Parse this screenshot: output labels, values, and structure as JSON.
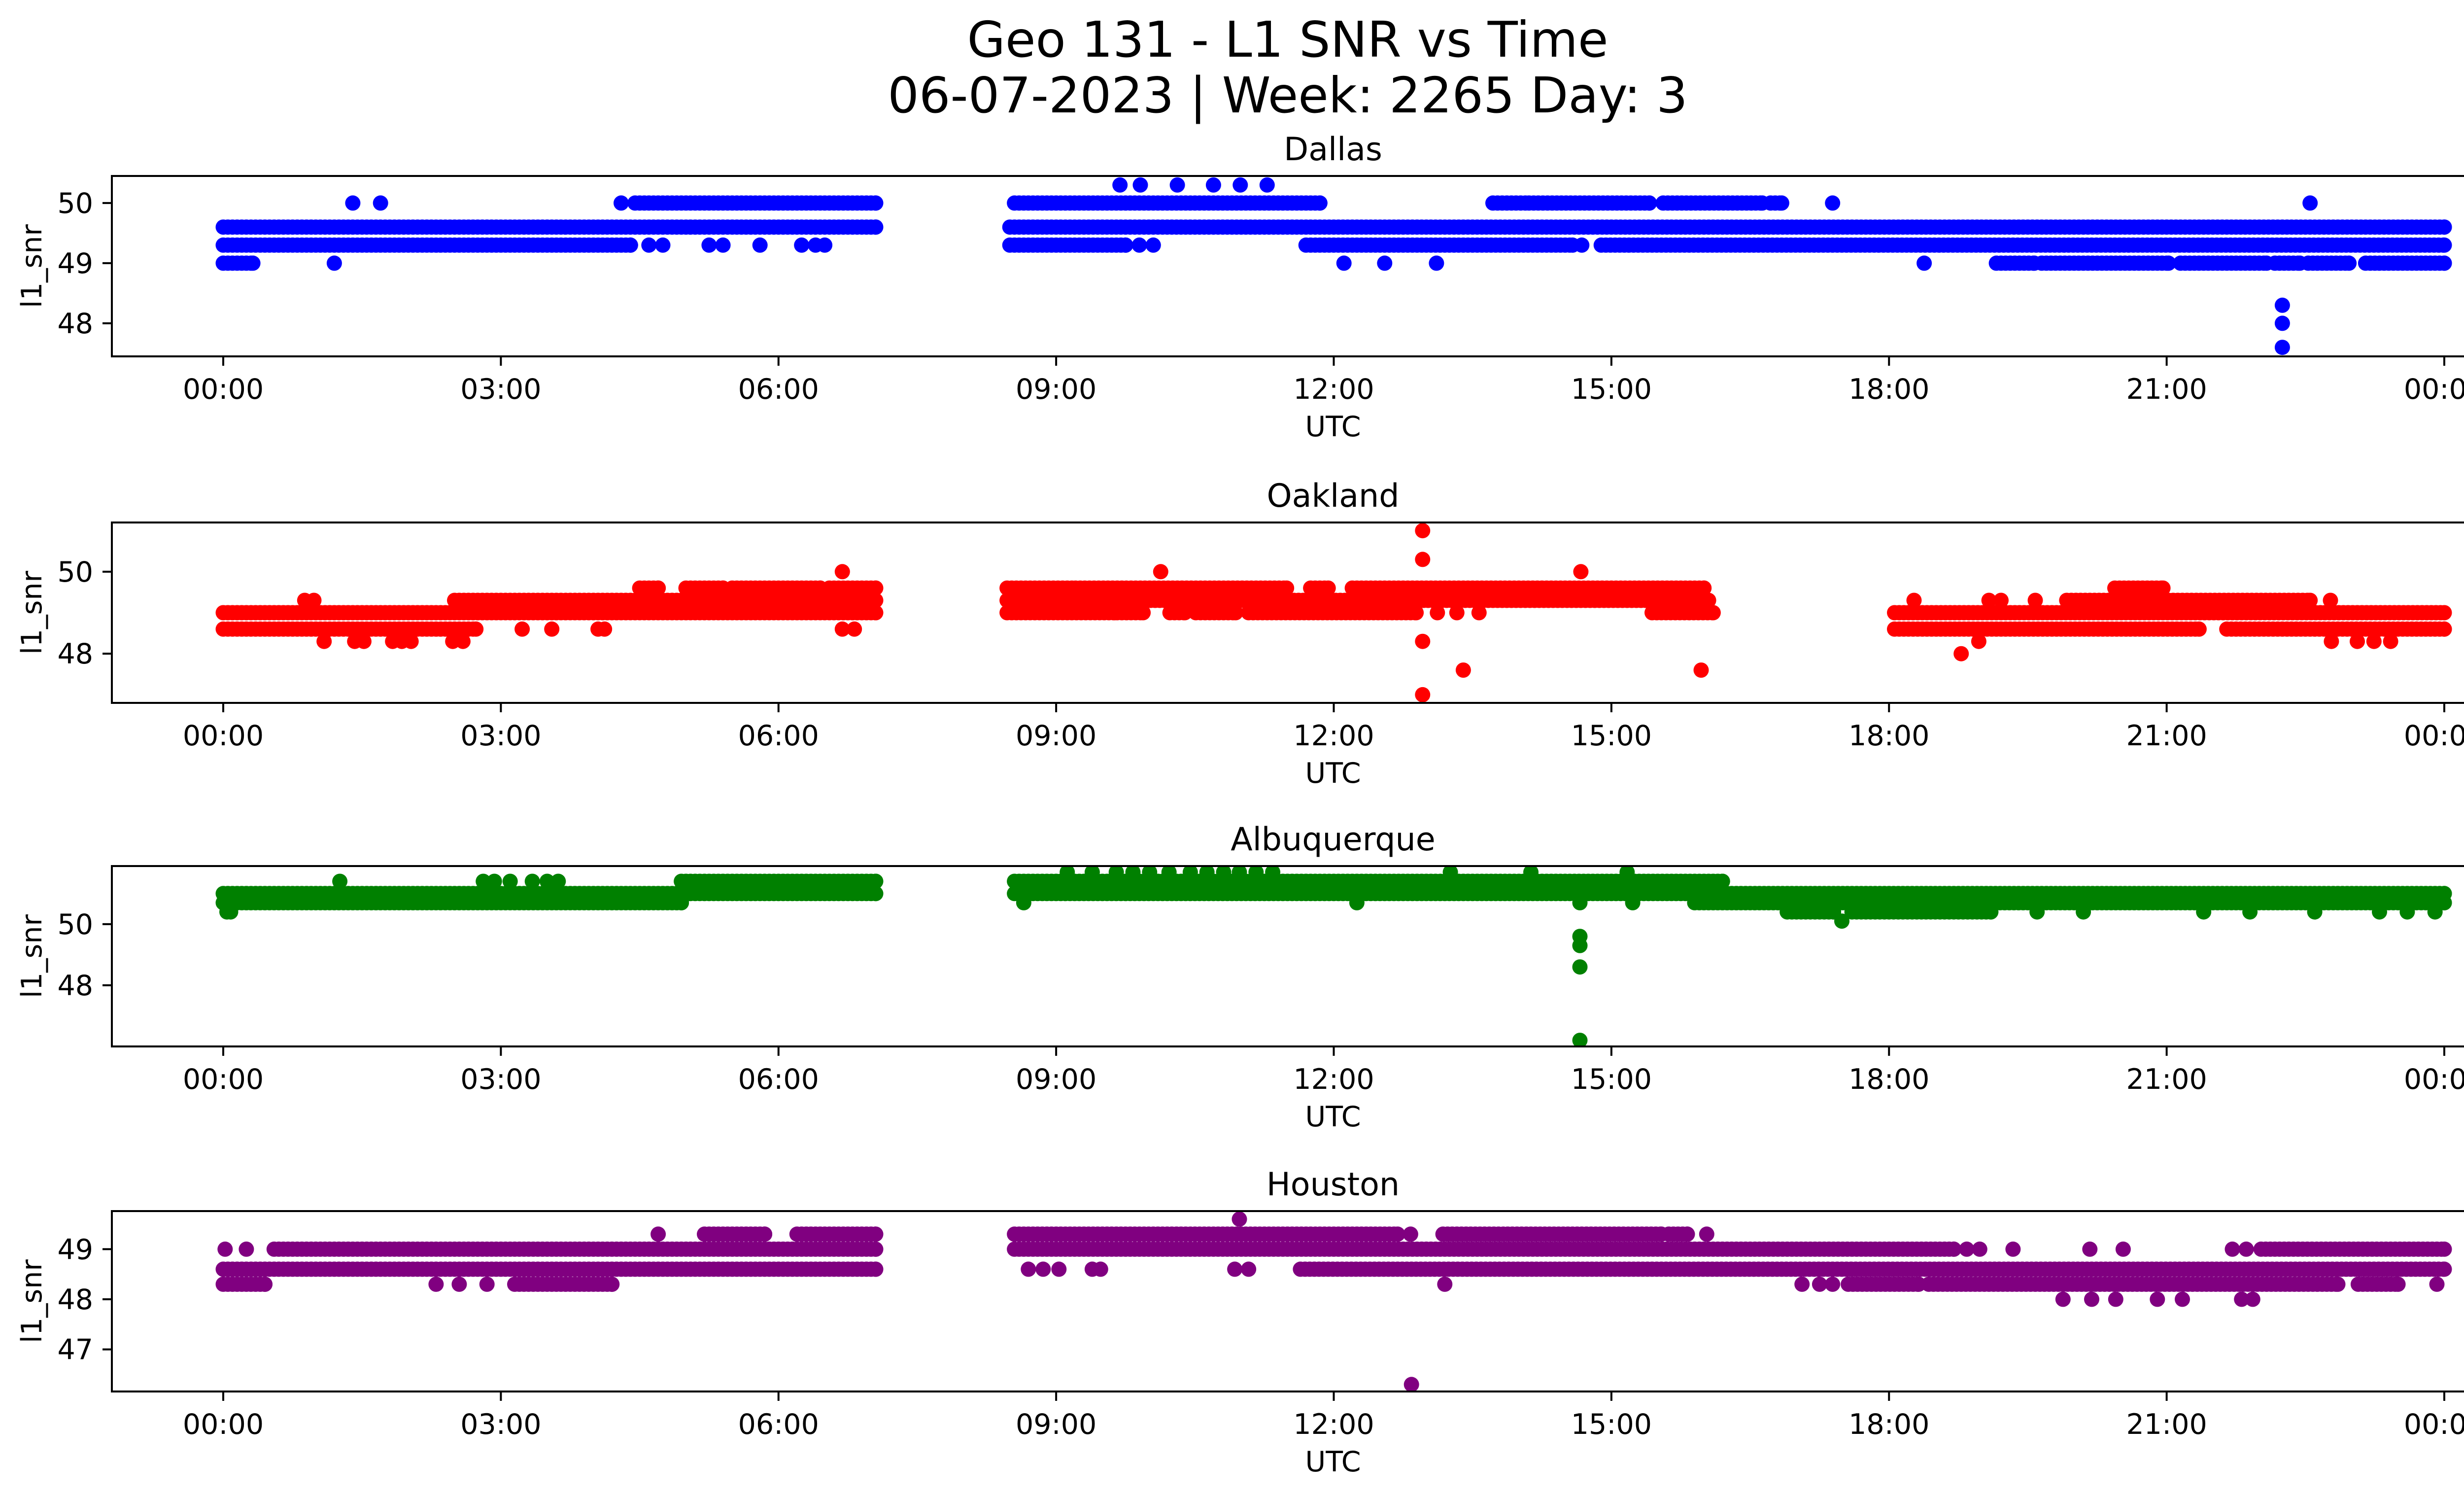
{
  "figure": {
    "title_line1": "Geo 131 - L1 SNR vs Time",
    "title_line2": "06-07-2023 | Week: 2265 Day: 3"
  },
  "chart_data": [
    {
      "type": "scatter",
      "title": "Dallas",
      "xlabel": "UTC",
      "ylabel": "l1_snr",
      "color": "#0000ff",
      "xlim_hours": [
        -1.2,
        25.2
      ],
      "xticks_hours": [
        0,
        3,
        6,
        9,
        12,
        15,
        18,
        21,
        24
      ],
      "xtick_labels": [
        "00:00",
        "03:00",
        "06:00",
        "09:00",
        "12:00",
        "15:00",
        "18:00",
        "21:00",
        "00:00"
      ],
      "ylim": [
        47.45,
        50.45
      ],
      "yticks": [
        48,
        49,
        50
      ],
      "ytick_labels": [
        "48",
        "49",
        "50"
      ],
      "grid": false,
      "runs": [
        [
          0.0,
          7.05,
          49.6
        ],
        [
          0.0,
          4.4,
          49.3
        ],
        [
          4.45,
          7.05,
          50.0
        ],
        [
          0.0,
          0.32,
          49.0
        ],
        [
          8.55,
          11.85,
          50.0
        ],
        [
          8.5,
          24.0,
          49.6
        ],
        [
          8.5,
          9.75,
          49.3
        ],
        [
          11.7,
          14.58,
          49.3
        ],
        [
          14.89,
          24.0,
          49.3
        ],
        [
          13.72,
          14.11,
          50.0
        ],
        [
          14.16,
          15.41,
          50.0
        ],
        [
          15.56,
          16.63,
          50.0
        ],
        [
          16.72,
          16.84,
          50.0
        ],
        [
          19.16,
          19.57,
          49.0
        ],
        [
          19.65,
          21.02,
          49.0
        ],
        [
          21.15,
          22.08,
          49.0
        ],
        [
          22.17,
          22.44,
          49.0
        ],
        [
          22.53,
          22.97,
          49.0
        ],
        [
          23.15,
          24.0,
          49.0
        ]
      ],
      "points": [
        [
          1.2,
          49.0
        ],
        [
          1.4,
          50.0
        ],
        [
          1.7,
          50.0
        ],
        [
          4.3,
          50.0
        ],
        [
          4.6,
          49.3
        ],
        [
          4.75,
          49.3
        ],
        [
          5.25,
          49.3
        ],
        [
          5.4,
          49.3
        ],
        [
          5.8,
          49.3
        ],
        [
          6.25,
          49.3
        ],
        [
          6.4,
          49.3
        ],
        [
          6.5,
          49.3
        ],
        [
          9.69,
          50.3
        ],
        [
          9.91,
          50.3
        ],
        [
          10.31,
          50.3
        ],
        [
          10.7,
          50.3
        ],
        [
          10.99,
          50.3
        ],
        [
          11.28,
          50.3
        ],
        [
          9.9,
          49.3
        ],
        [
          10.05,
          49.3
        ],
        [
          14.68,
          49.3
        ],
        [
          12.11,
          49.0
        ],
        [
          12.55,
          49.0
        ],
        [
          13.11,
          49.0
        ],
        [
          18.38,
          49.0
        ],
        [
          17.39,
          50.0
        ],
        [
          22.55,
          50.0
        ],
        [
          22.25,
          48.3
        ],
        [
          22.25,
          48.0
        ],
        [
          22.25,
          47.6
        ]
      ]
    },
    {
      "type": "scatter",
      "title": "Oakland",
      "xlabel": "UTC",
      "ylabel": "l1_snr",
      "color": "#ff0000",
      "xlim_hours": [
        -1.2,
        25.2
      ],
      "xticks_hours": [
        0,
        3,
        6,
        9,
        12,
        15,
        18,
        21,
        24
      ],
      "xtick_labels": [
        "00:00",
        "03:00",
        "06:00",
        "09:00",
        "12:00",
        "15:00",
        "18:00",
        "21:00",
        "00:00"
      ],
      "ylim": [
        46.8,
        51.2
      ],
      "yticks": [
        48,
        50
      ],
      "ytick_labels": [
        "48",
        "50"
      ],
      "grid": false,
      "runs": [
        [
          0.0,
          7.05,
          49.0
        ],
        [
          0.0,
          2.73,
          48.6
        ],
        [
          2.5,
          7.05,
          49.3
        ],
        [
          4.5,
          4.7,
          49.6
        ],
        [
          5.0,
          5.4,
          49.6
        ],
        [
          5.5,
          6.45,
          49.6
        ],
        [
          6.55,
          7.05,
          49.6
        ],
        [
          8.47,
          16.05,
          49.3
        ],
        [
          8.47,
          9.21,
          49.6
        ],
        [
          9.26,
          11.49,
          49.6
        ],
        [
          11.75,
          11.94,
          49.6
        ],
        [
          12.2,
          16.0,
          49.6
        ],
        [
          8.47,
          9.63,
          49.0
        ],
        [
          9.66,
          9.94,
          49.0
        ],
        [
          10.23,
          10.39,
          49.0
        ],
        [
          10.51,
          10.94,
          49.0
        ],
        [
          11.08,
          12.89,
          49.0
        ],
        [
          15.44,
          16.1,
          49.0
        ],
        [
          18.06,
          24.0,
          49.0
        ],
        [
          18.06,
          21.35,
          48.6
        ],
        [
          21.65,
          24.0,
          48.6
        ],
        [
          19.92,
          22.55,
          49.3
        ],
        [
          20.44,
          20.96,
          49.6
        ]
      ],
      "points": [
        [
          0.88,
          49.3
        ],
        [
          0.98,
          49.3
        ],
        [
          1.09,
          48.3
        ],
        [
          1.42,
          48.3
        ],
        [
          1.52,
          48.3
        ],
        [
          1.83,
          48.3
        ],
        [
          1.93,
          48.3
        ],
        [
          2.03,
          48.3
        ],
        [
          2.48,
          48.3
        ],
        [
          2.59,
          48.3
        ],
        [
          3.23,
          48.6
        ],
        [
          3.55,
          48.6
        ],
        [
          4.05,
          48.6
        ],
        [
          4.12,
          48.6
        ],
        [
          6.69,
          48.6
        ],
        [
          6.82,
          48.6
        ],
        [
          6.69,
          50.0
        ],
        [
          10.13,
          50.0
        ],
        [
          14.67,
          50.0
        ],
        [
          12.96,
          51.0
        ],
        [
          12.96,
          50.3
        ],
        [
          12.96,
          48.3
        ],
        [
          12.96,
          47.0
        ],
        [
          13.12,
          49.0
        ],
        [
          13.33,
          49.0
        ],
        [
          13.57,
          49.0
        ],
        [
          13.4,
          47.6
        ],
        [
          15.97,
          47.6
        ],
        [
          18.27,
          49.3
        ],
        [
          19.08,
          49.3
        ],
        [
          19.21,
          49.3
        ],
        [
          19.58,
          49.3
        ],
        [
          22.77,
          49.3
        ],
        [
          18.97,
          48.3
        ],
        [
          22.78,
          48.3
        ],
        [
          23.06,
          48.3
        ],
        [
          23.24,
          48.3
        ],
        [
          23.42,
          48.3
        ],
        [
          18.78,
          48.0
        ]
      ]
    },
    {
      "type": "scatter",
      "title": "Albuquerque",
      "xlabel": "UTC",
      "ylabel": "l1_snr",
      "color": "#008000",
      "xlim_hours": [
        -1.2,
        25.2
      ],
      "xticks_hours": [
        0,
        3,
        6,
        9,
        12,
        15,
        18,
        21,
        24
      ],
      "xtick_labels": [
        "00:00",
        "03:00",
        "06:00",
        "09:00",
        "12:00",
        "15:00",
        "18:00",
        "21:00",
        "00:00"
      ],
      "ylim": [
        46.0,
        51.9
      ],
      "yticks": [
        48,
        50
      ],
      "ytick_labels": [
        "48",
        "50"
      ],
      "grid": false,
      "runs": [
        [
          0.0,
          4.95,
          50.7
        ],
        [
          0.0,
          7.05,
          51.0
        ],
        [
          4.95,
          7.05,
          51.4
        ],
        [
          8.55,
          16.2,
          51.0
        ],
        [
          8.55,
          16.2,
          51.4
        ],
        [
          15.9,
          24.0,
          50.7
        ],
        [
          15.9,
          24.0,
          51.0
        ],
        [
          16.9,
          17.4,
          50.4
        ],
        [
          17.6,
          19.1,
          50.4
        ]
      ],
      "points": [
        [
          0.04,
          50.4
        ],
        [
          0.08,
          50.4
        ],
        [
          1.26,
          51.4
        ],
        [
          2.81,
          51.4
        ],
        [
          2.93,
          51.4
        ],
        [
          3.1,
          51.4
        ],
        [
          3.34,
          51.4
        ],
        [
          3.5,
          51.4
        ],
        [
          3.62,
          51.4
        ],
        [
          9.12,
          51.7
        ],
        [
          9.39,
          51.7
        ],
        [
          9.65,
          51.7
        ],
        [
          9.83,
          51.7
        ],
        [
          10.01,
          51.7
        ],
        [
          10.22,
          51.7
        ],
        [
          10.45,
          51.7
        ],
        [
          10.63,
          51.7
        ],
        [
          10.81,
          51.7
        ],
        [
          10.98,
          51.7
        ],
        [
          11.16,
          51.7
        ],
        [
          11.34,
          51.7
        ],
        [
          13.26,
          51.7
        ],
        [
          14.13,
          51.7
        ],
        [
          15.17,
          51.7
        ],
        [
          8.65,
          50.7
        ],
        [
          12.25,
          50.7
        ],
        [
          15.23,
          50.7
        ],
        [
          14.66,
          50.7
        ],
        [
          14.66,
          49.6
        ],
        [
          14.66,
          49.3
        ],
        [
          14.66,
          48.6
        ],
        [
          14.66,
          46.2
        ],
        [
          17.49,
          50.1
        ],
        [
          19.6,
          50.4
        ],
        [
          20.1,
          50.4
        ],
        [
          21.4,
          50.4
        ],
        [
          21.9,
          50.4
        ],
        [
          22.6,
          50.4
        ],
        [
          23.3,
          50.4
        ],
        [
          23.6,
          50.4
        ],
        [
          23.9,
          50.4
        ]
      ]
    },
    {
      "type": "scatter",
      "title": "Houston",
      "xlabel": "UTC",
      "ylabel": "l1_snr",
      "color": "#800080",
      "xlim_hours": [
        -1.2,
        25.2
      ],
      "xticks_hours": [
        0,
        3,
        6,
        9,
        12,
        15,
        18,
        21,
        24
      ],
      "xtick_labels": [
        "00:00",
        "03:00",
        "06:00",
        "09:00",
        "12:00",
        "15:00",
        "18:00",
        "21:00",
        "00:00"
      ],
      "ylim": [
        46.16,
        49.76
      ],
      "yticks": [
        47,
        48,
        49
      ],
      "ytick_labels": [
        "47",
        "48",
        "49"
      ],
      "grid": false,
      "runs": [
        [
          0.0,
          7.05,
          48.6
        ],
        [
          0.55,
          7.05,
          49.0
        ],
        [
          0.0,
          0.45,
          48.3
        ],
        [
          3.15,
          4.2,
          48.3
        ],
        [
          5.2,
          5.85,
          49.3
        ],
        [
          6.2,
          7.05,
          49.3
        ],
        [
          8.55,
          18.7,
          49.0
        ],
        [
          22.02,
          24.0,
          49.0
        ],
        [
          8.55,
          12.69,
          49.3
        ],
        [
          13.18,
          15.54,
          49.3
        ],
        [
          15.62,
          15.82,
          49.3
        ],
        [
          11.64,
          24.0,
          48.6
        ],
        [
          17.56,
          18.32,
          48.3
        ],
        [
          18.43,
          22.85,
          48.3
        ],
        [
          23.07,
          23.5,
          48.3
        ]
      ],
      "points": [
        [
          0.02,
          49.0
        ],
        [
          0.25,
          49.0
        ],
        [
          2.3,
          48.3
        ],
        [
          2.55,
          48.3
        ],
        [
          2.85,
          48.3
        ],
        [
          4.7,
          49.3
        ],
        [
          8.7,
          48.6
        ],
        [
          8.86,
          48.6
        ],
        [
          9.03,
          48.6
        ],
        [
          9.39,
          48.6
        ],
        [
          9.48,
          48.6
        ],
        [
          10.93,
          48.6
        ],
        [
          11.08,
          48.6
        ],
        [
          10.98,
          49.6
        ],
        [
          12.83,
          49.3
        ],
        [
          16.03,
          49.3
        ],
        [
          12.84,
          46.3
        ],
        [
          13.2,
          48.3
        ],
        [
          18.84,
          49.0
        ],
        [
          18.98,
          49.0
        ],
        [
          19.34,
          49.0
        ],
        [
          20.17,
          49.0
        ],
        [
          20.53,
          49.0
        ],
        [
          21.71,
          49.0
        ],
        [
          21.86,
          49.0
        ],
        [
          17.06,
          48.3
        ],
        [
          17.25,
          48.3
        ],
        [
          17.39,
          48.3
        ],
        [
          23.92,
          48.3
        ],
        [
          19.88,
          48.0
        ],
        [
          20.19,
          48.0
        ],
        [
          20.45,
          48.0
        ],
        [
          20.9,
          48.0
        ],
        [
          21.17,
          48.0
        ],
        [
          21.81,
          48.0
        ],
        [
          21.93,
          48.0
        ]
      ]
    }
  ]
}
